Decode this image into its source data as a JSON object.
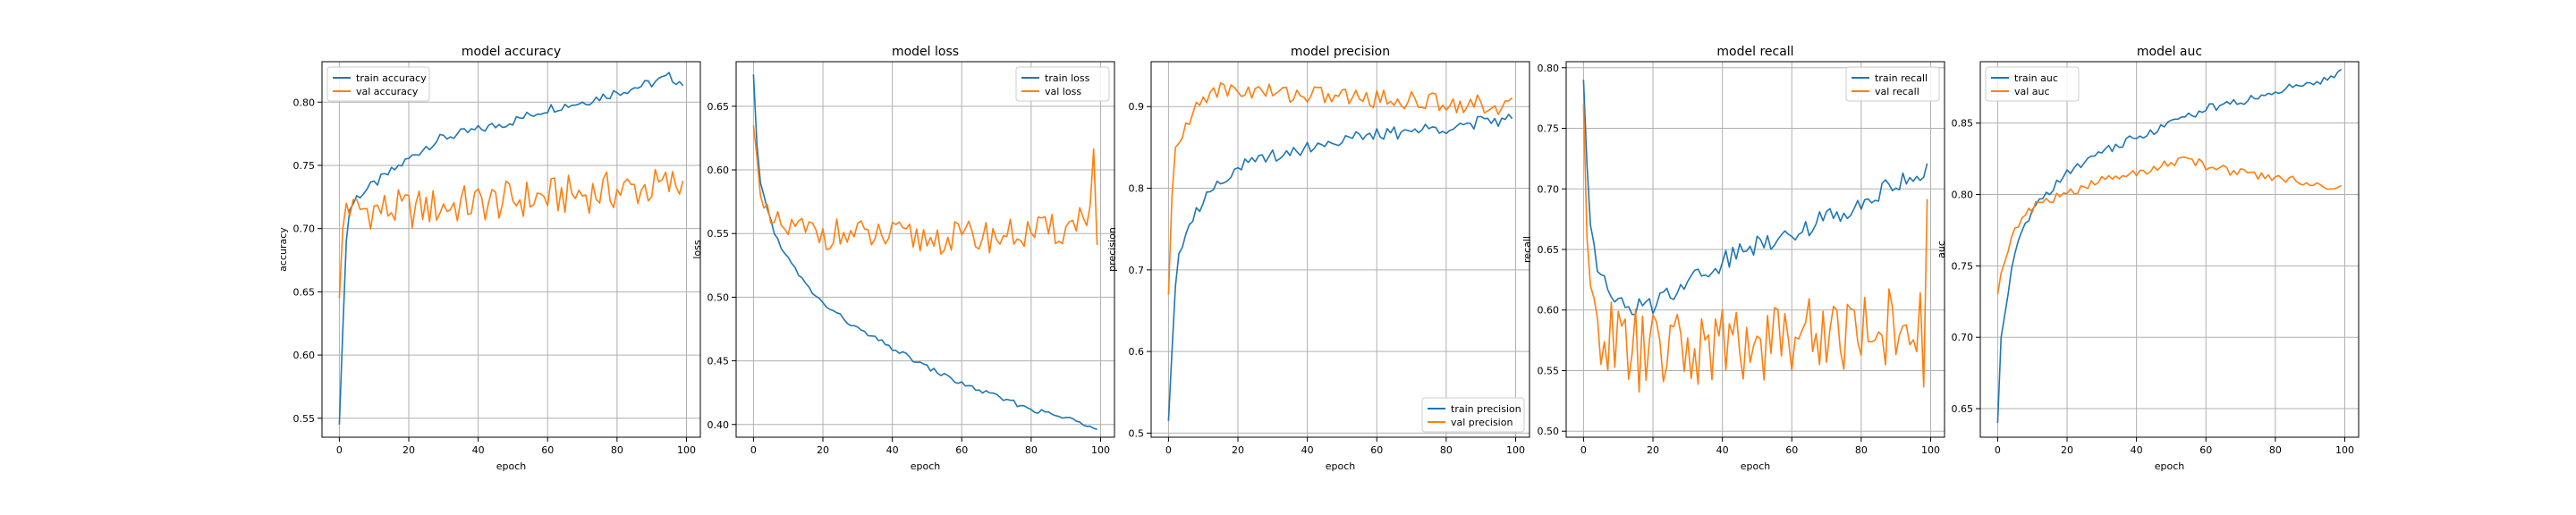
{
  "figure": {
    "background": "#ffffff",
    "colors": {
      "train": "#1f77b4",
      "val": "#ff7f0e",
      "grid": "#b0b0b0"
    }
  },
  "chart_data": [
    {
      "type": "line",
      "title": "model accuracy",
      "xlabel": "epoch",
      "ylabel": "accuracy",
      "xlim": [
        -5,
        104
      ],
      "ylim": [
        0.535,
        0.832
      ],
      "xticks": [
        0,
        20,
        40,
        60,
        80,
        100
      ],
      "xtick_labels": [
        "0",
        "20",
        "40",
        "60",
        "80",
        "100"
      ],
      "yticks": [
        0.55,
        0.6,
        0.65,
        0.7,
        0.75,
        0.8
      ],
      "ytick_labels": [
        "0.55",
        "0.60",
        "0.65",
        "0.70",
        "0.75",
        "0.80"
      ],
      "grid": true,
      "legend_position": "upper left",
      "series": [
        {
          "name": "train accuracy",
          "color": "#1f77b4",
          "anchors": [
            [
              0,
              0.545
            ],
            [
              1,
              0.62
            ],
            [
              2,
              0.69
            ],
            [
              3,
              0.715
            ],
            [
              5,
              0.725
            ],
            [
              10,
              0.735
            ],
            [
              15,
              0.745
            ],
            [
              20,
              0.755
            ],
            [
              25,
              0.765
            ],
            [
              30,
              0.772
            ],
            [
              40,
              0.778
            ],
            [
              50,
              0.785
            ],
            [
              60,
              0.795
            ],
            [
              70,
              0.8
            ],
            [
              80,
              0.808
            ],
            [
              90,
              0.815
            ],
            [
              95,
              0.82
            ],
            [
              99,
              0.815
            ]
          ],
          "noise": 0.004
        },
        {
          "name": "val accuracy",
          "color": "#ff7f0e",
          "anchors": [
            [
              0,
              0.645
            ],
            [
              1,
              0.7
            ],
            [
              2,
              0.72
            ],
            [
              3,
              0.71
            ],
            [
              5,
              0.715
            ],
            [
              20,
              0.715
            ],
            [
              40,
              0.72
            ],
            [
              60,
              0.725
            ],
            [
              80,
              0.73
            ],
            [
              99,
              0.735
            ]
          ],
          "noise": 0.016
        }
      ]
    },
    {
      "type": "line",
      "title": "model loss",
      "xlabel": "epoch",
      "ylabel": "loss",
      "xlim": [
        -5,
        104
      ],
      "ylim": [
        0.39,
        0.685
      ],
      "xticks": [
        0,
        20,
        40,
        60,
        80,
        100
      ],
      "xtick_labels": [
        "0",
        "20",
        "40",
        "60",
        "80",
        "100"
      ],
      "yticks": [
        0.4,
        0.45,
        0.5,
        0.55,
        0.6,
        0.65
      ],
      "ytick_labels": [
        "0.40",
        "0.45",
        "0.50",
        "0.55",
        "0.60",
        "0.65"
      ],
      "grid": true,
      "legend_position": "upper right",
      "series": [
        {
          "name": "train loss",
          "color": "#1f77b4",
          "anchors": [
            [
              0,
              0.675
            ],
            [
              1,
              0.62
            ],
            [
              2,
              0.59
            ],
            [
              4,
              0.57
            ],
            [
              6,
              0.55
            ],
            [
              10,
              0.53
            ],
            [
              15,
              0.51
            ],
            [
              20,
              0.495
            ],
            [
              30,
              0.475
            ],
            [
              40,
              0.46
            ],
            [
              50,
              0.445
            ],
            [
              60,
              0.432
            ],
            [
              70,
              0.422
            ],
            [
              80,
              0.412
            ],
            [
              90,
              0.405
            ],
            [
              99,
              0.398
            ]
          ],
          "noise": 0.002
        },
        {
          "name": "val loss",
          "color": "#ff7f0e",
          "anchors": [
            [
              0,
              0.635
            ],
            [
              1,
              0.61
            ],
            [
              2,
              0.58
            ],
            [
              4,
              0.56
            ],
            [
              6,
              0.555
            ],
            [
              10,
              0.553
            ],
            [
              30,
              0.548
            ],
            [
              50,
              0.546
            ],
            [
              70,
              0.548
            ],
            [
              90,
              0.553
            ],
            [
              97,
              0.57
            ],
            [
              98,
              0.61
            ],
            [
              99,
              0.55
            ]
          ],
          "noise": 0.013
        }
      ]
    },
    {
      "type": "line",
      "title": "model precision",
      "xlabel": "epoch",
      "ylabel": "precision",
      "xlim": [
        -5,
        104
      ],
      "ylim": [
        0.495,
        0.955
      ],
      "xticks": [
        0,
        20,
        40,
        60,
        80,
        100
      ],
      "xtick_labels": [
        "0",
        "20",
        "40",
        "60",
        "80",
        "100"
      ],
      "yticks": [
        0.5,
        0.6,
        0.7,
        0.8,
        0.9
      ],
      "ytick_labels": [
        "0.5",
        "0.6",
        "0.7",
        "0.8",
        "0.9"
      ],
      "grid": true,
      "legend_position": "lower right",
      "series": [
        {
          "name": "train precision",
          "color": "#1f77b4",
          "anchors": [
            [
              0,
              0.515
            ],
            [
              1,
              0.6
            ],
            [
              2,
              0.68
            ],
            [
              3,
              0.72
            ],
            [
              5,
              0.75
            ],
            [
              8,
              0.77
            ],
            [
              12,
              0.8
            ],
            [
              20,
              0.825
            ],
            [
              30,
              0.84
            ],
            [
              40,
              0.85
            ],
            [
              50,
              0.86
            ],
            [
              60,
              0.865
            ],
            [
              70,
              0.87
            ],
            [
              80,
              0.875
            ],
            [
              90,
              0.88
            ],
            [
              99,
              0.885
            ]
          ],
          "noise": 0.008
        },
        {
          "name": "val precision",
          "color": "#ff7f0e",
          "anchors": [
            [
              0,
              0.67
            ],
            [
              1,
              0.79
            ],
            [
              2,
              0.85
            ],
            [
              4,
              0.86
            ],
            [
              6,
              0.88
            ],
            [
              8,
              0.9
            ],
            [
              12,
              0.92
            ],
            [
              20,
              0.92
            ],
            [
              40,
              0.915
            ],
            [
              60,
              0.91
            ],
            [
              80,
              0.905
            ],
            [
              99,
              0.9
            ]
          ],
          "noise": 0.012
        }
      ]
    },
    {
      "type": "line",
      "title": "model recall",
      "xlabel": "epoch",
      "ylabel": "recall",
      "xlim": [
        -5,
        104
      ],
      "ylim": [
        0.495,
        0.805
      ],
      "xticks": [
        0,
        20,
        40,
        60,
        80,
        100
      ],
      "xtick_labels": [
        "0",
        "20",
        "40",
        "60",
        "80",
        "100"
      ],
      "yticks": [
        0.5,
        0.55,
        0.6,
        0.65,
        0.7,
        0.75,
        0.8
      ],
      "ytick_labels": [
        "0.50",
        "0.55",
        "0.60",
        "0.65",
        "0.70",
        "0.75",
        "0.80"
      ],
      "grid": true,
      "legend_position": "upper right",
      "series": [
        {
          "name": "train recall",
          "color": "#1f77b4",
          "anchors": [
            [
              0,
              0.79
            ],
            [
              1,
              0.72
            ],
            [
              2,
              0.67
            ],
            [
              4,
              0.64
            ],
            [
              6,
              0.62
            ],
            [
              10,
              0.605
            ],
            [
              15,
              0.6
            ],
            [
              20,
              0.605
            ],
            [
              30,
              0.625
            ],
            [
              40,
              0.64
            ],
            [
              50,
              0.655
            ],
            [
              60,
              0.665
            ],
            [
              70,
              0.675
            ],
            [
              80,
              0.69
            ],
            [
              90,
              0.705
            ],
            [
              99,
              0.715
            ]
          ],
          "noise": 0.009
        },
        {
          "name": "val recall",
          "color": "#ff7f0e",
          "anchors": [
            [
              0,
              0.77
            ],
            [
              1,
              0.66
            ],
            [
              2,
              0.62
            ],
            [
              4,
              0.6
            ],
            [
              6,
              0.58
            ],
            [
              10,
              0.57
            ],
            [
              20,
              0.565
            ],
            [
              40,
              0.57
            ],
            [
              60,
              0.58
            ],
            [
              80,
              0.585
            ],
            [
              96,
              0.59
            ],
            [
              97,
              0.58
            ],
            [
              98,
              0.56
            ],
            [
              99,
              0.68
            ]
          ],
          "noise": 0.035
        }
      ]
    },
    {
      "type": "line",
      "title": "model auc",
      "xlabel": "epoch",
      "ylabel": "auc",
      "xlim": [
        -5,
        104
      ],
      "ylim": [
        0.63,
        0.893
      ],
      "xticks": [
        0,
        20,
        40,
        60,
        80,
        100
      ],
      "xtick_labels": [
        "0",
        "20",
        "40",
        "60",
        "80",
        "100"
      ],
      "yticks": [
        0.65,
        0.7,
        0.75,
        0.8,
        0.85
      ],
      "ytick_labels": [
        "0.65",
        "0.70",
        "0.75",
        "0.80",
        "0.85"
      ],
      "grid": true,
      "legend_position": "upper left",
      "series": [
        {
          "name": "train auc",
          "color": "#1f77b4",
          "anchors": [
            [
              0,
              0.64
            ],
            [
              1,
              0.7
            ],
            [
              2,
              0.715
            ],
            [
              3,
              0.73
            ],
            [
              5,
              0.76
            ],
            [
              8,
              0.78
            ],
            [
              12,
              0.795
            ],
            [
              20,
              0.815
            ],
            [
              30,
              0.83
            ],
            [
              40,
              0.84
            ],
            [
              50,
              0.85
            ],
            [
              60,
              0.86
            ],
            [
              70,
              0.865
            ],
            [
              80,
              0.872
            ],
            [
              90,
              0.878
            ],
            [
              99,
              0.885
            ]
          ],
          "noise": 0.003
        },
        {
          "name": "val auc",
          "color": "#ff7f0e",
          "anchors": [
            [
              0,
              0.73
            ],
            [
              1,
              0.745
            ],
            [
              3,
              0.76
            ],
            [
              5,
              0.775
            ],
            [
              8,
              0.785
            ],
            [
              12,
              0.795
            ],
            [
              20,
              0.8
            ],
            [
              30,
              0.81
            ],
            [
              40,
              0.815
            ],
            [
              50,
              0.822
            ],
            [
              55,
              0.825
            ],
            [
              60,
              0.82
            ],
            [
              70,
              0.815
            ],
            [
              80,
              0.812
            ],
            [
              90,
              0.808
            ],
            [
              99,
              0.805
            ]
          ],
          "noise": 0.003
        }
      ]
    }
  ]
}
